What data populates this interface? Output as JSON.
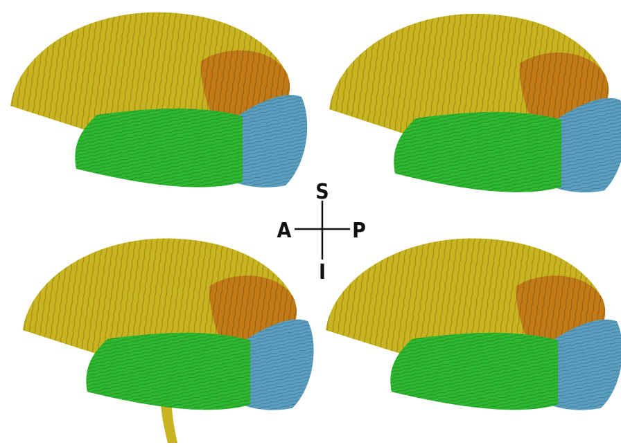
{
  "orientation": {
    "superior": "S",
    "anterior": "A",
    "posterior": "P",
    "inferior": "I"
  }
}
